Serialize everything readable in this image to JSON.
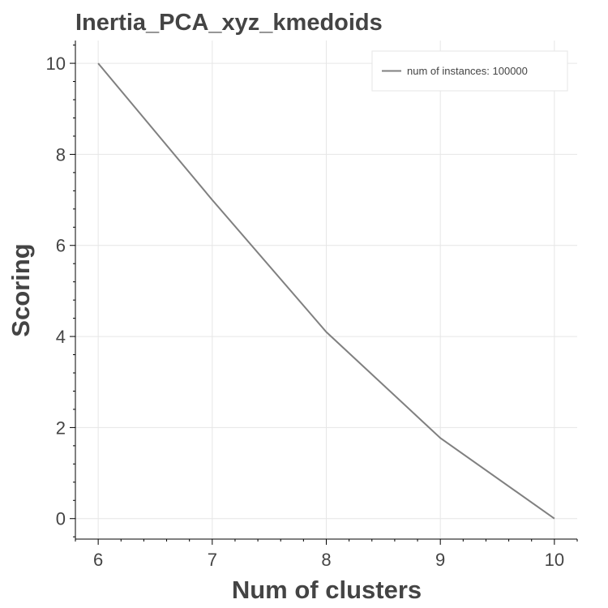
{
  "chart_data": {
    "type": "line",
    "title": "Inertia_PCA_xyz_kmedoids",
    "xlabel": "Num of clusters",
    "ylabel": "Scoring",
    "x": [
      6,
      7,
      8,
      9,
      10
    ],
    "series": [
      {
        "name": "num of instances: 100000",
        "values": [
          10.0,
          7.0,
          4.1,
          1.77,
          0.0
        ]
      }
    ],
    "xlim": [
      5.8,
      10.2
    ],
    "ylim": [
      -0.45,
      10.5
    ],
    "xticks": [
      6,
      7,
      8,
      9,
      10
    ],
    "yticks": [
      0,
      2,
      4,
      6,
      8,
      10
    ],
    "grid": true,
    "legend": "top-right",
    "colors": {
      "line": "#808080",
      "grid": "#e6e6e6",
      "axis": "#000000",
      "text": "#444444"
    }
  }
}
